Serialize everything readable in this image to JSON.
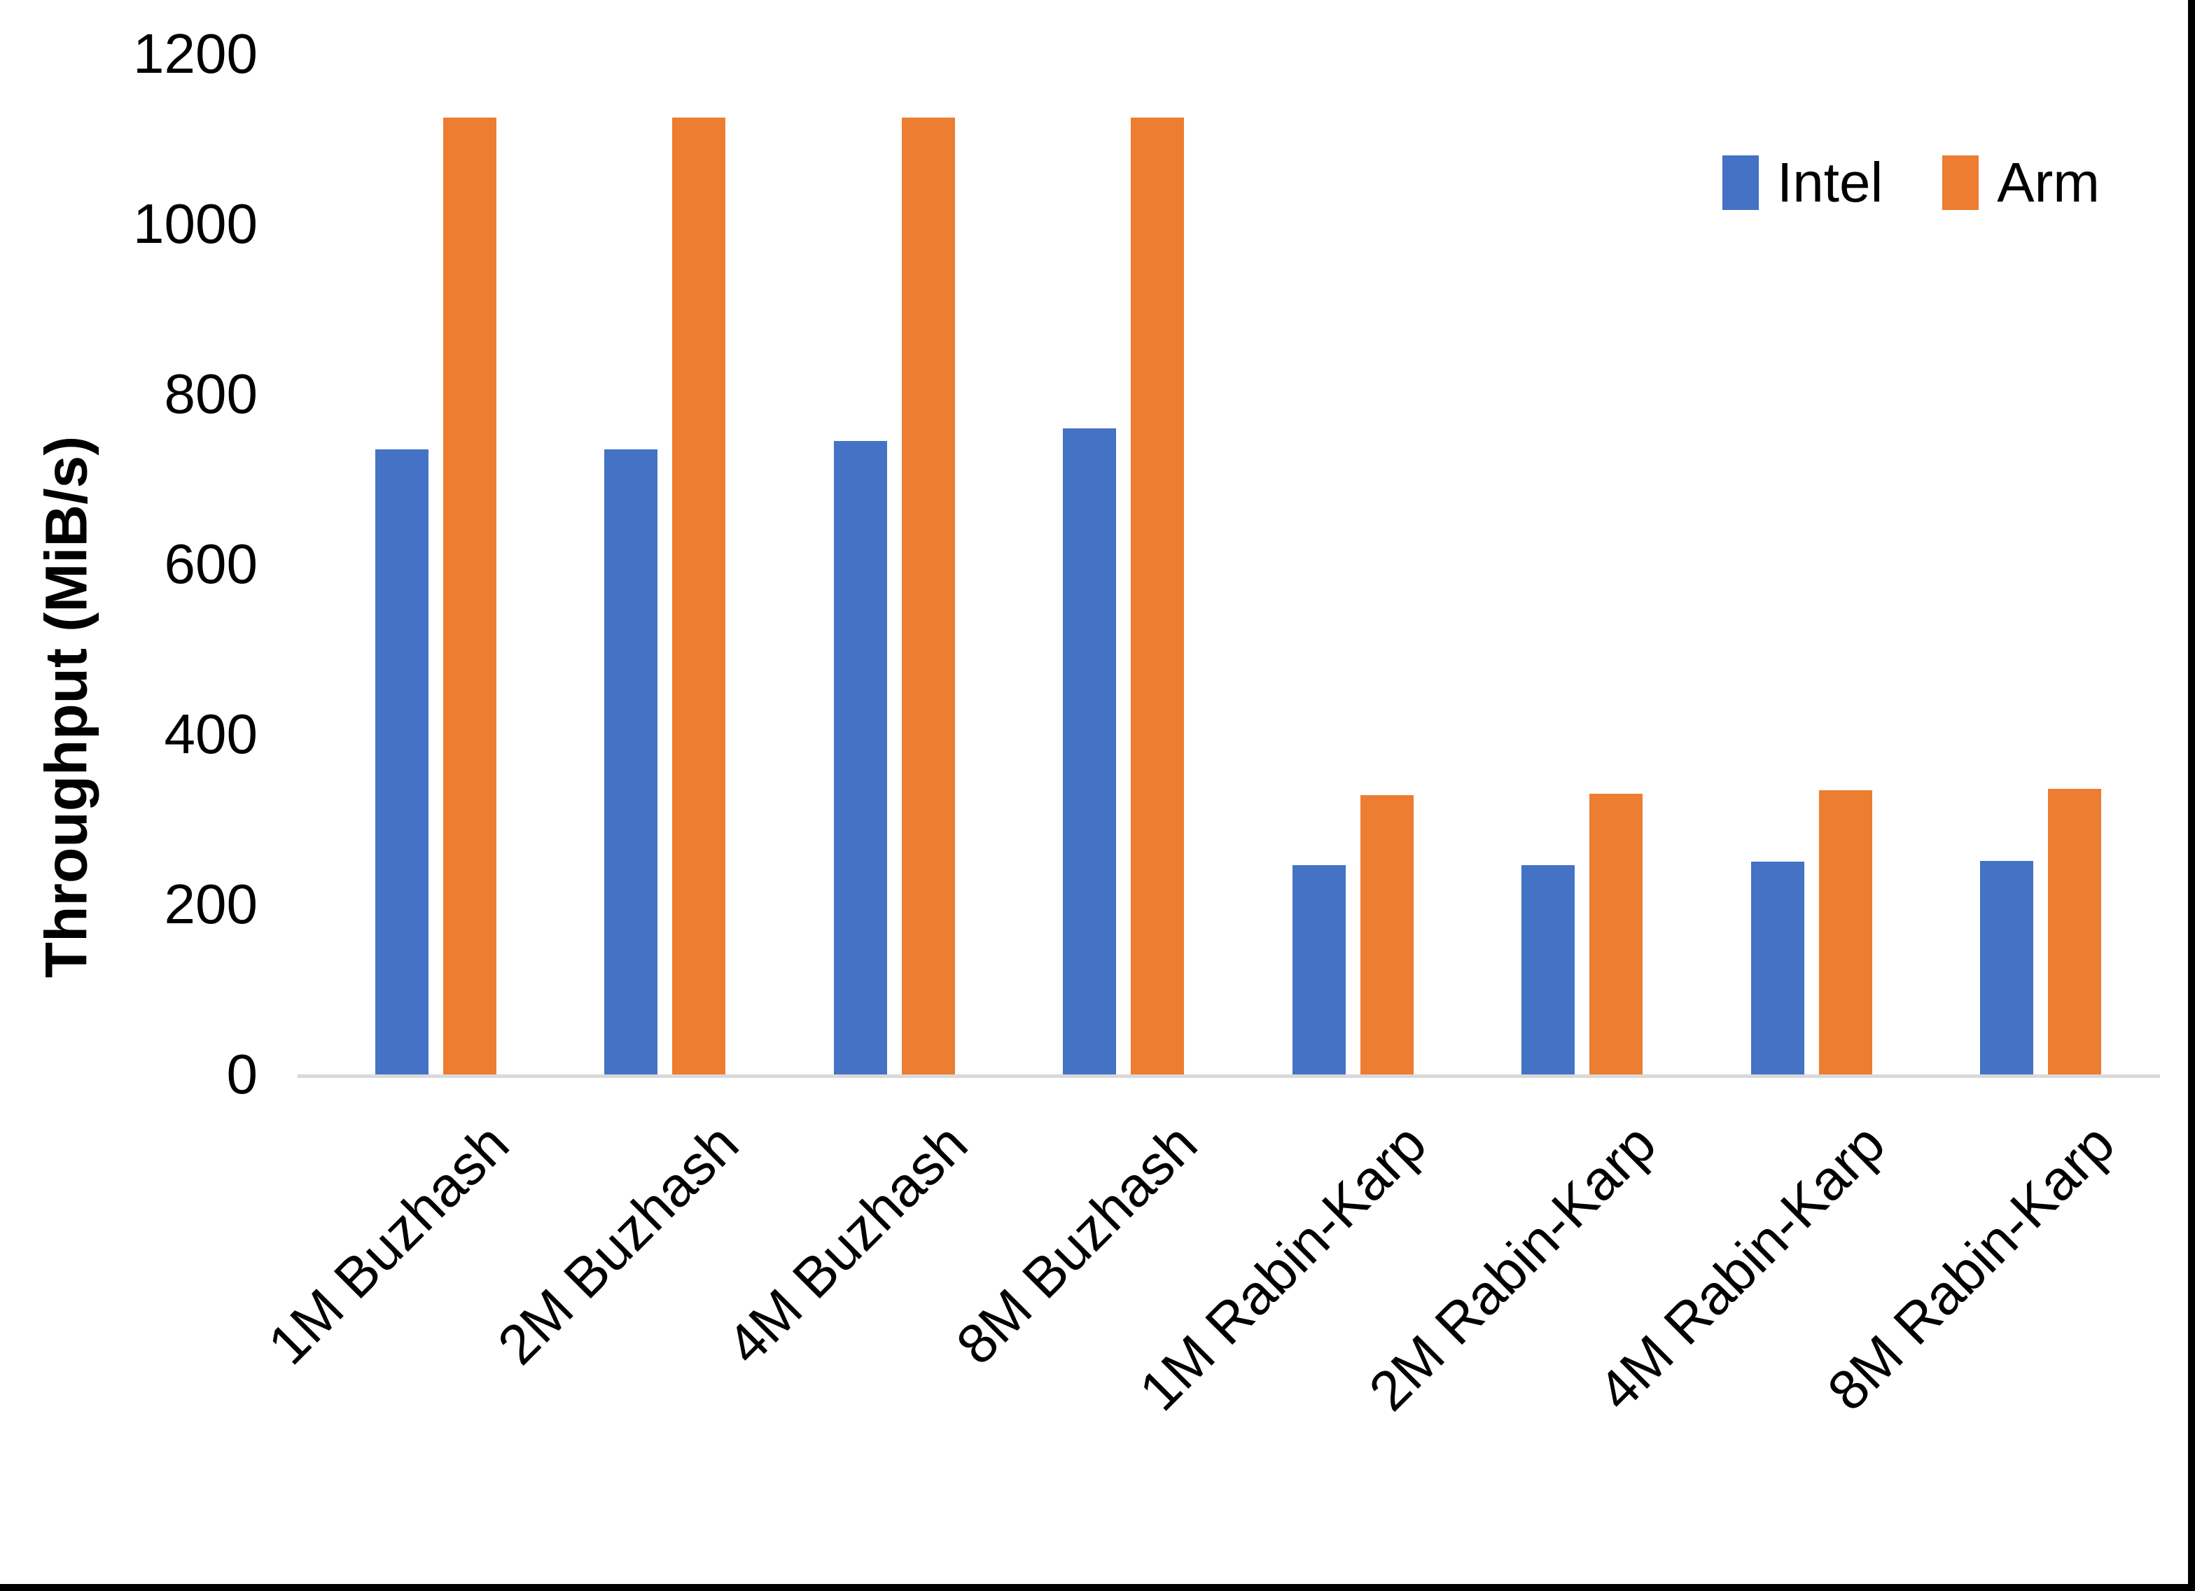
{
  "chart_data": {
    "type": "bar",
    "title": "",
    "categories": [
      "1M Buzhash",
      "2M Buzhash",
      "4M Buzhash",
      "8M Buzhash",
      "1M Rabin-Karp",
      "2M Rabin-Karp",
      "4M Rabin-Karp",
      "8M Rabin-Karp"
    ],
    "series": [
      {
        "name": "Intel",
        "color": "#4472C4",
        "values": [
          735,
          735,
          745,
          760,
          246,
          246,
          250,
          251
        ]
      },
      {
        "name": "Arm",
        "color": "#ED7D31",
        "values": [
          1125,
          1125,
          1125,
          1125,
          328,
          330,
          334,
          336
        ]
      }
    ],
    "xlabel": "",
    "ylabel": "Throughput (MiB/s)",
    "ylim": [
      0,
      1200
    ],
    "yticks": [
      0,
      200,
      400,
      600,
      800,
      1000,
      1200
    ],
    "grid": false,
    "legend_position": "top-right",
    "axis_line_color": "#D9D9D9",
    "text_color": "#000000",
    "background_color": "#FFFFFF"
  }
}
